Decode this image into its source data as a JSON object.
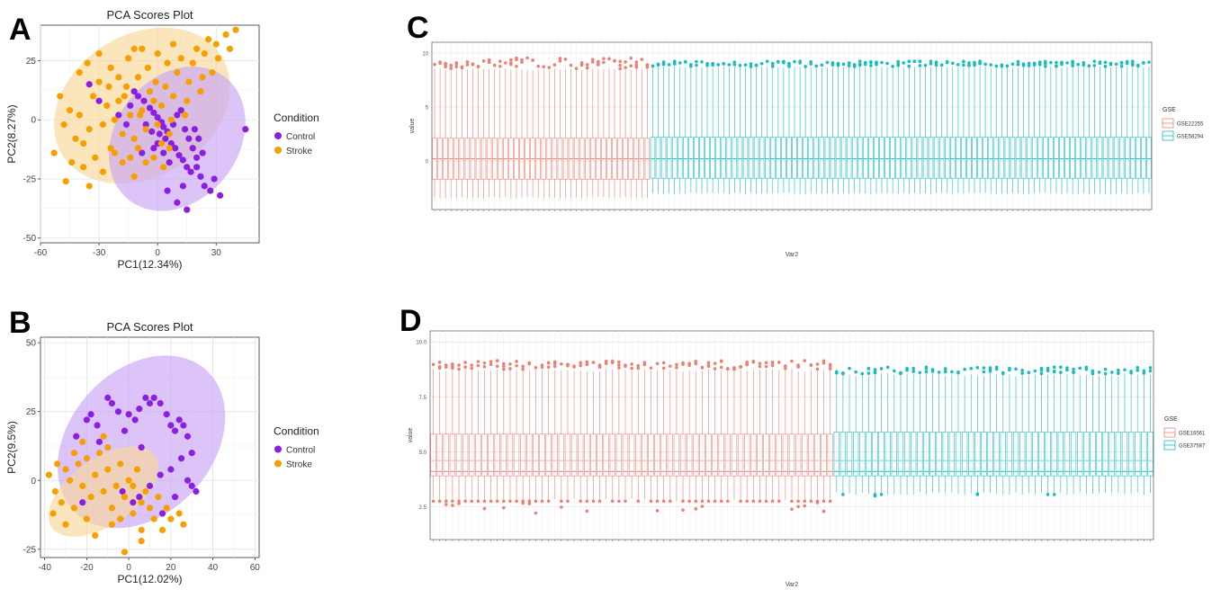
{
  "panels": {
    "A": {
      "letter": "A"
    },
    "B": {
      "letter": "B"
    },
    "C": {
      "letter": "C"
    },
    "D": {
      "letter": "D"
    }
  },
  "colors": {
    "control": "#8B1FE0",
    "stroke": "#F5A000",
    "control_ellipse": "#C9A4F5",
    "stroke_ellipse": "#F7D79A",
    "overlap_ellipse": "#E8B9B7",
    "red_series": "#F07F73",
    "teal_series": "#19BDBE"
  },
  "chart_data": [
    {
      "id": "A",
      "type": "scatter",
      "title": "PCA Scores Plot",
      "xlabel": "PC1(12.34%)",
      "ylabel": "PC2(8.27%)",
      "xlim": [
        -60,
        52
      ],
      "ylim": [
        -52,
        40
      ],
      "xticks": [
        -60,
        -30,
        0,
        30
      ],
      "yticks": [
        -50,
        -25,
        0,
        25
      ],
      "grid": true,
      "legend": {
        "title": "Condition",
        "position": "right",
        "entries": [
          "Control",
          "Stroke"
        ]
      },
      "ellipses": [
        {
          "series": "Stroke",
          "center": [
            -8,
            6
          ],
          "rx": 48,
          "ry": 30,
          "angle_deg": -32
        },
        {
          "series": "Control",
          "center": [
            10,
            -8
          ],
          "rx": 40,
          "ry": 26,
          "angle_deg": -52
        }
      ],
      "series": [
        {
          "name": "Control",
          "points": [
            [
              -10,
              10
            ],
            [
              -7,
              8
            ],
            [
              -4,
              5
            ],
            [
              -2,
              3
            ],
            [
              0,
              1
            ],
            [
              2,
              -1
            ],
            [
              3,
              -3
            ],
            [
              5,
              -5
            ],
            [
              -6,
              -2
            ],
            [
              -3,
              -5
            ],
            [
              1,
              -6
            ],
            [
              4,
              -8
            ],
            [
              7,
              -10
            ],
            [
              9,
              -12
            ],
            [
              11,
              -15
            ],
            [
              13,
              -17
            ],
            [
              15,
              -20
            ],
            [
              17,
              -22
            ],
            [
              20,
              -20
            ],
            [
              22,
              -24
            ],
            [
              24,
              -28
            ],
            [
              27,
              -30
            ],
            [
              29,
              -25
            ],
            [
              32,
              -32
            ],
            [
              8,
              -2
            ],
            [
              10,
              2
            ],
            [
              12,
              4
            ],
            [
              14,
              -4
            ],
            [
              16,
              -8
            ],
            [
              18,
              -12
            ],
            [
              20,
              -16
            ],
            [
              23,
              -14
            ],
            [
              -12,
              12
            ],
            [
              -14,
              6
            ],
            [
              -16,
              -2
            ],
            [
              -8,
              -14
            ],
            [
              6,
              -18
            ],
            [
              13,
              -28
            ],
            [
              10,
              -35
            ],
            [
              5,
              -30
            ],
            [
              15,
              -38
            ],
            [
              45,
              -4
            ],
            [
              -35,
              15
            ],
            [
              -30,
              8
            ],
            [
              -20,
              2
            ],
            [
              0,
              -10
            ],
            [
              3,
              -14
            ],
            [
              -2,
              -12
            ],
            [
              19,
              -4
            ],
            [
              21,
              -8
            ]
          ]
        },
        {
          "name": "Stroke",
          "points": [
            [
              -53,
              -14
            ],
            [
              -48,
              -2
            ],
            [
              -45,
              4
            ],
            [
              -42,
              -8
            ],
            [
              -40,
              2
            ],
            [
              -38,
              -10
            ],
            [
              -35,
              -4
            ],
            [
              -33,
              10
            ],
            [
              -30,
              16
            ],
            [
              -28,
              -2
            ],
            [
              -26,
              6
            ],
            [
              -24,
              -12
            ],
            [
              -22,
              0
            ],
            [
              -20,
              8
            ],
            [
              -18,
              -6
            ],
            [
              -16,
              14
            ],
            [
              -14,
              2
            ],
            [
              -12,
              -8
            ],
            [
              -10,
              18
            ],
            [
              -8,
              4
            ],
            [
              -6,
              -4
            ],
            [
              -4,
              12
            ],
            [
              -2,
              8
            ],
            [
              0,
              -2
            ],
            [
              2,
              6
            ],
            [
              4,
              14
            ],
            [
              6,
              -6
            ],
            [
              8,
              10
            ],
            [
              10,
              20
            ],
            [
              12,
              26
            ],
            [
              14,
              2
            ],
            [
              16,
              16
            ],
            [
              18,
              24
            ],
            [
              20,
              30
            ],
            [
              22,
              12
            ],
            [
              24,
              28
            ],
            [
              26,
              34
            ],
            [
              28,
              20
            ],
            [
              30,
              32
            ],
            [
              35,
              36
            ],
            [
              40,
              38
            ],
            [
              -40,
              20
            ],
            [
              -36,
              24
            ],
            [
              -30,
              28
            ],
            [
              -24,
              22
            ],
            [
              -20,
              18
            ],
            [
              -15,
              26
            ],
            [
              -12,
              30
            ],
            [
              -5,
              22
            ],
            [
              0,
              28
            ],
            [
              5,
              24
            ],
            [
              -50,
              10
            ],
            [
              -44,
              -18
            ],
            [
              -38,
              -20
            ],
            [
              -32,
              -16
            ],
            [
              -28,
              -22
            ],
            [
              -22,
              -14
            ],
            [
              -18,
              -18
            ],
            [
              -14,
              -16
            ],
            [
              -10,
              -12
            ],
            [
              -6,
              -18
            ],
            [
              -2,
              -16
            ],
            [
              2,
              -10
            ],
            [
              6,
              -12
            ],
            [
              -25,
              14
            ],
            [
              -17,
              10
            ],
            [
              -9,
              2
            ],
            [
              -1,
              16
            ],
            [
              7,
              0
            ],
            [
              15,
              8
            ],
            [
              23,
              18
            ],
            [
              31,
              26
            ],
            [
              37,
              30
            ],
            [
              -47,
              -26
            ],
            [
              -35,
              -28
            ],
            [
              -8,
              30
            ],
            [
              8,
              32
            ],
            [
              3,
              -20
            ],
            [
              -12,
              -24
            ]
          ]
        }
      ]
    },
    {
      "id": "B",
      "type": "scatter",
      "title": "PCA Scores Plot",
      "xlabel": "PC1(12.02%)",
      "ylabel": "PC2(9.5%)",
      "xlim": [
        -42,
        62
      ],
      "ylim": [
        -28,
        52
      ],
      "xticks": [
        -40,
        -20,
        0,
        20,
        40,
        60
      ],
      "yticks": [
        -25,
        0,
        25,
        50
      ],
      "grid": true,
      "legend": {
        "title": "Condition",
        "position": "right",
        "entries": [
          "Control",
          "Stroke"
        ]
      },
      "ellipses": [
        {
          "series": "Control",
          "center": [
            6,
            14
          ],
          "rx": 46,
          "ry": 26,
          "angle_deg": -48
        },
        {
          "series": "Stroke",
          "center": [
            -12,
            -4
          ],
          "rx": 30,
          "ry": 12,
          "angle_deg": -35
        }
      ],
      "series": [
        {
          "name": "Control",
          "points": [
            [
              -25,
              16
            ],
            [
              -20,
              22
            ],
            [
              -18,
              24
            ],
            [
              -15,
              20
            ],
            [
              -10,
              30
            ],
            [
              -8,
              28
            ],
            [
              -5,
              25
            ],
            [
              0,
              24
            ],
            [
              3,
              22
            ],
            [
              5,
              26
            ],
            [
              8,
              30
            ],
            [
              10,
              28
            ],
            [
              12,
              30
            ],
            [
              15,
              28
            ],
            [
              18,
              24
            ],
            [
              20,
              20
            ],
            [
              22,
              18
            ],
            [
              24,
              22
            ],
            [
              26,
              20
            ],
            [
              28,
              16
            ],
            [
              30,
              10
            ],
            [
              25,
              8
            ],
            [
              20,
              4
            ],
            [
              15,
              2
            ],
            [
              10,
              -2
            ],
            [
              5,
              -6
            ],
            [
              2,
              -8
            ],
            [
              -3,
              -4
            ],
            [
              28,
              0
            ],
            [
              32,
              -4
            ],
            [
              30,
              -2
            ],
            [
              22,
              -6
            ],
            [
              16,
              -12
            ],
            [
              -14,
              14
            ],
            [
              -2,
              18
            ],
            [
              6,
              12
            ],
            [
              -22,
              -8
            ]
          ]
        },
        {
          "name": "Stroke",
          "points": [
            [
              -38,
              2
            ],
            [
              -35,
              -4
            ],
            [
              -32,
              -8
            ],
            [
              -30,
              4
            ],
            [
              -28,
              0
            ],
            [
              -26,
              -10
            ],
            [
              -24,
              6
            ],
            [
              -22,
              -2
            ],
            [
              -20,
              8
            ],
            [
              -18,
              -6
            ],
            [
              -16,
              2
            ],
            [
              -14,
              10
            ],
            [
              -12,
              -4
            ],
            [
              -10,
              4
            ],
            [
              -8,
              -10
            ],
            [
              -6,
              -2
            ],
            [
              -4,
              6
            ],
            [
              -2,
              -6
            ],
            [
              0,
              0
            ],
            [
              2,
              -2
            ],
            [
              4,
              4
            ],
            [
              6,
              -8
            ],
            [
              8,
              -4
            ],
            [
              10,
              -10
            ],
            [
              12,
              -14
            ],
            [
              14,
              -6
            ],
            [
              16,
              -18
            ],
            [
              18,
              -10
            ],
            [
              20,
              -14
            ],
            [
              24,
              -12
            ],
            [
              26,
              -16
            ],
            [
              -36,
              -12
            ],
            [
              -30,
              -16
            ],
            [
              -34,
              6
            ],
            [
              -20,
              -14
            ],
            [
              -16,
              -20
            ],
            [
              -8,
              -16
            ],
            [
              -2,
              -26
            ],
            [
              6,
              -22
            ],
            [
              6,
              -18
            ],
            [
              -12,
              16
            ],
            [
              -22,
              14
            ],
            [
              -4,
              -14
            ],
            [
              2,
              -12
            ],
            [
              -26,
              10
            ],
            [
              -10,
              12
            ]
          ]
        }
      ]
    },
    {
      "id": "C",
      "type": "box",
      "title": "",
      "xlabel": "Var2",
      "ylabel": "value",
      "ylim": [
        -4.5,
        11
      ],
      "yticks": [
        -5,
        0,
        5,
        10
      ],
      "grid": true,
      "legend": {
        "title": "GSE",
        "position": "right",
        "entries": [
          "GSE22255",
          "GSE58294"
        ]
      },
      "series": [
        {
          "name": "GSE22255",
          "count": 40,
          "median": 0.2,
          "q1": -1.7,
          "q3": 2.1,
          "whisker_low": -3.4,
          "whisker_high": 8.5,
          "outlier_high": 9.5
        },
        {
          "name": "GSE58294",
          "count": 92,
          "median": 0.2,
          "q1": -1.6,
          "q3": 2.2,
          "whisker_low": -3.0,
          "whisker_high": 8.7,
          "outlier_high": 9.2
        }
      ]
    },
    {
      "id": "D",
      "type": "box",
      "title": "",
      "xlabel": "Var2",
      "ylabel": "value",
      "ylim": [
        1.0,
        10.5
      ],
      "yticks": [
        2.5,
        5.0,
        7.5,
        10.0
      ],
      "ytick_labels": [
        "2.5",
        "5.0",
        "7.5",
        "10.0"
      ],
      "grid": true,
      "legend": {
        "title": "GSE",
        "position": "right",
        "entries": [
          "GSE16561",
          "GSE37587"
        ]
      },
      "series": [
        {
          "name": "GSE16561",
          "count": 63,
          "median": 4.1,
          "q1": 3.9,
          "q3": 4.6,
          "whisker_low": 2.8,
          "whisker_high": 8.7,
          "box_upper": 5.8,
          "outlier_high": 9.1,
          "outlier_low": 2.2
        },
        {
          "name": "GSE37587",
          "count": 50,
          "median": 4.1,
          "q1": 3.9,
          "q3": 4.6,
          "whisker_low": 3.1,
          "whisker_high": 8.5,
          "box_upper": 5.9,
          "outlier_high": 8.8,
          "outlier_low": 2.6
        }
      ]
    }
  ]
}
